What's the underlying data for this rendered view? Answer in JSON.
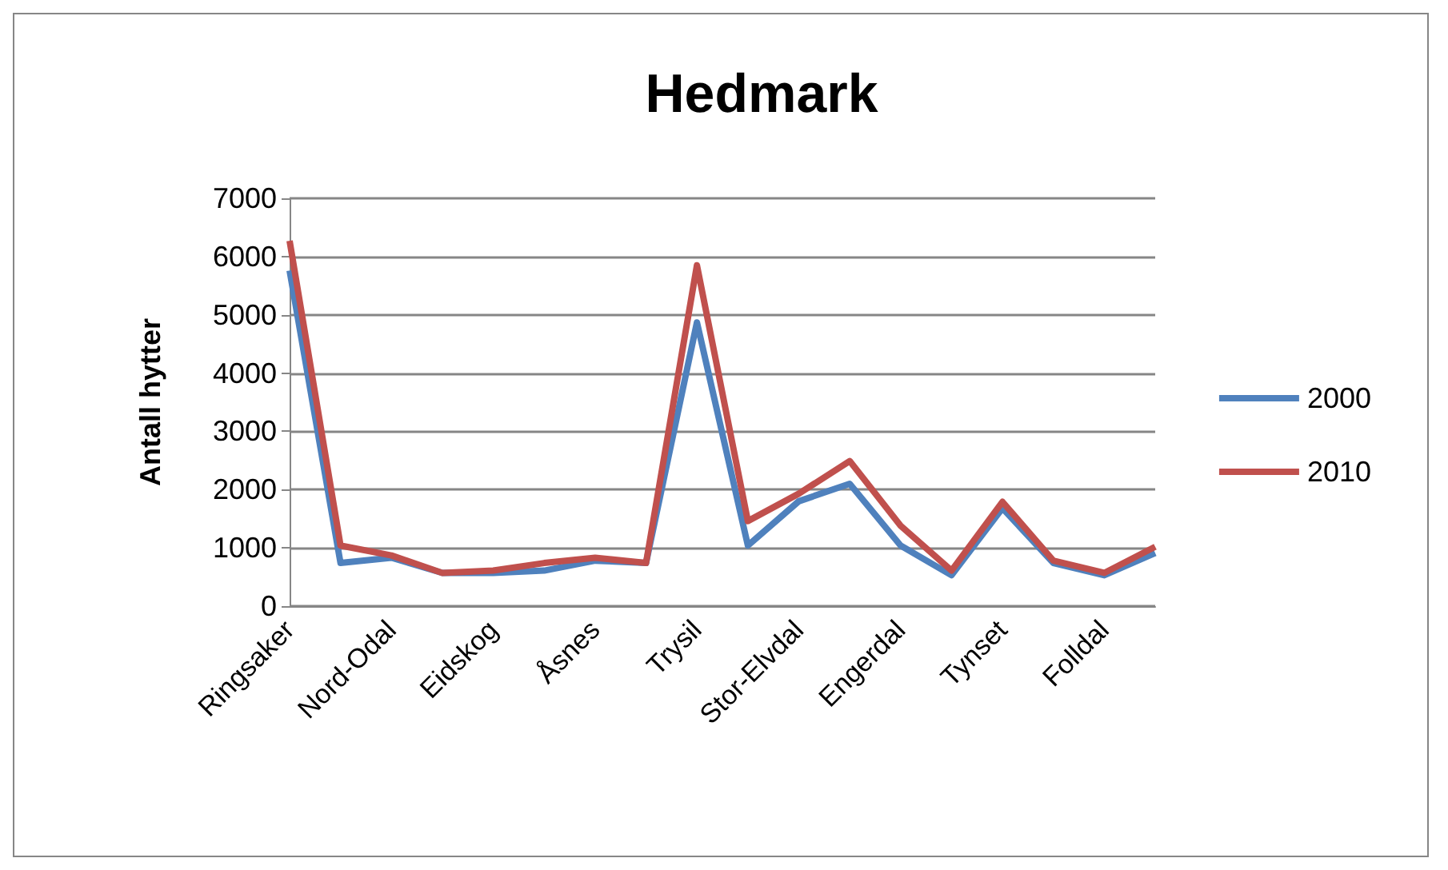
{
  "chart_data": {
    "type": "line",
    "title": "Hedmark",
    "ylabel": "Antall hytter",
    "categories": [
      "Ringsaker",
      null,
      "Nord-Odal",
      null,
      "Eidskog",
      null,
      "Åsnes",
      null,
      "Trysil",
      null,
      "Stor-Elvdal",
      null,
      "Engerdal",
      null,
      "Tynset",
      null,
      "Folldal",
      null
    ],
    "series": [
      {
        "name": "2000",
        "color": "#4f81bd",
        "values": [
          5760,
          740,
          830,
          570,
          570,
          610,
          780,
          740,
          4870,
          1040,
          1800,
          2100,
          1040,
          530,
          1680,
          740,
          530,
          910
        ]
      },
      {
        "name": "2010",
        "color": "#c0504d",
        "values": [
          6270,
          1040,
          870,
          570,
          610,
          740,
          830,
          740,
          5850,
          1460,
          1930,
          2490,
          1380,
          610,
          1790,
          780,
          570,
          1020
        ]
      }
    ],
    "ylim": [
      0,
      7000
    ],
    "yticks": [
      0,
      1000,
      2000,
      3000,
      4000,
      5000,
      6000,
      7000
    ],
    "grid": "y",
    "legend": "right",
    "marker": "none",
    "line_style": "solid"
  }
}
